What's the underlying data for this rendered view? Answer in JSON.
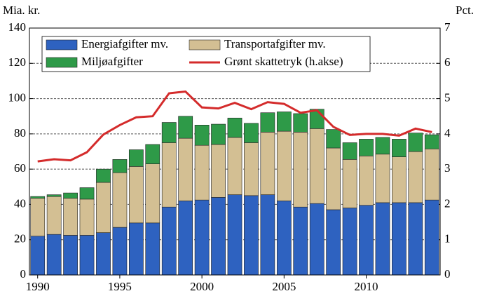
{
  "chart_data": {
    "type": "bar",
    "stacked": true,
    "y_axis_label": "Mia. kr.",
    "y2_axis_label": "Pct.",
    "x": [
      1990,
      1991,
      1992,
      1993,
      1994,
      1995,
      1996,
      1997,
      1998,
      1999,
      2000,
      2001,
      2002,
      2003,
      2004,
      2005,
      2006,
      2007,
      2008,
      2009,
      2010,
      2011,
      2012,
      2013,
      2014
    ],
    "series": [
      {
        "name": "Energiafgifter mv.",
        "color": "#2e62c0",
        "values": [
          22,
          23,
          22.5,
          22.5,
          24,
          27,
          29.5,
          29.5,
          38.5,
          42,
          42.5,
          44,
          45.5,
          45,
          45.5,
          42,
          38.5,
          40.5,
          37,
          38,
          39.5,
          41,
          41,
          41,
          42.5
        ]
      },
      {
        "name": "Transportafgifter mv.",
        "color": "#d3bf93",
        "values": [
          21.5,
          21.5,
          21,
          20.5,
          28.5,
          31,
          32,
          33.5,
          36.5,
          35.5,
          31,
          30,
          32.5,
          30,
          35.5,
          39.5,
          42.5,
          42.5,
          35,
          27.5,
          28,
          27.5,
          26,
          29,
          29
        ]
      },
      {
        "name": "Miljøafgifter",
        "color": "#2e9a48",
        "values": [
          1,
          1,
          3,
          6.5,
          7.5,
          7.5,
          9.5,
          11,
          11.5,
          12.5,
          11.5,
          11.5,
          11,
          11,
          11,
          11,
          10.5,
          11,
          10.5,
          9.5,
          9.5,
          9.5,
          10,
          10.5,
          8
        ]
      },
      {
        "name": "Grønt skattetryk (h.akse)",
        "color": "#d42b2b",
        "type": "line",
        "axis": "y2",
        "values": [
          3.22,
          3.28,
          3.25,
          3.48,
          3.98,
          4.25,
          4.47,
          4.5,
          5.15,
          5.2,
          4.75,
          4.72,
          4.88,
          4.7,
          4.9,
          4.85,
          4.6,
          4.67,
          4.2,
          3.97,
          4.0,
          4.0,
          3.95,
          4.15,
          4.05
        ]
      }
    ],
    "xlim": [
      1989.5,
      2014.5
    ],
    "xticks": [
      1990,
      1995,
      2000,
      2005,
      2010
    ],
    "ylim": [
      0,
      140
    ],
    "yticks": [
      0,
      20,
      40,
      60,
      80,
      100,
      120,
      140
    ],
    "y2lim": [
      0,
      7
    ],
    "y2ticks": [
      0,
      1,
      2,
      3,
      4,
      5,
      6,
      7
    ],
    "grid": true
  }
}
